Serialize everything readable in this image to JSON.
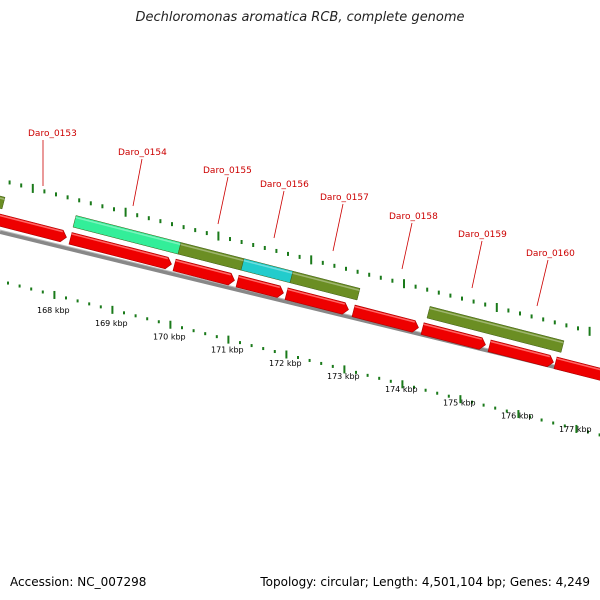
{
  "title": "Dechloromonas aromatica RCB, complete genome",
  "footer": {
    "accession": "Accession: NC_007298",
    "summary": "Topology: circular; Length: 4,501,104 bp; Genes: 4,249"
  },
  "colors": {
    "cds": "#ee0000",
    "gene_olive": "#6b8e23",
    "gene_springgreen": "#33ee99",
    "gene_cyan": "#22cccc",
    "backbone": "#888888",
    "tick": "#1a7a1a",
    "label": "#cc0000"
  },
  "scale_labels": [
    "168 kbp",
    "169 kbp",
    "170 kbp",
    "171 kbp",
    "172 kbp",
    "173 kbp",
    "174 kbp",
    "175 kbp",
    "176 kbp",
    "177 kbp"
  ],
  "genes": [
    "Daro_0153",
    "Daro_0154",
    "Daro_0155",
    "Daro_0156",
    "Daro_0157",
    "Daro_0158",
    "Daro_0159",
    "Daro_0160"
  ]
}
